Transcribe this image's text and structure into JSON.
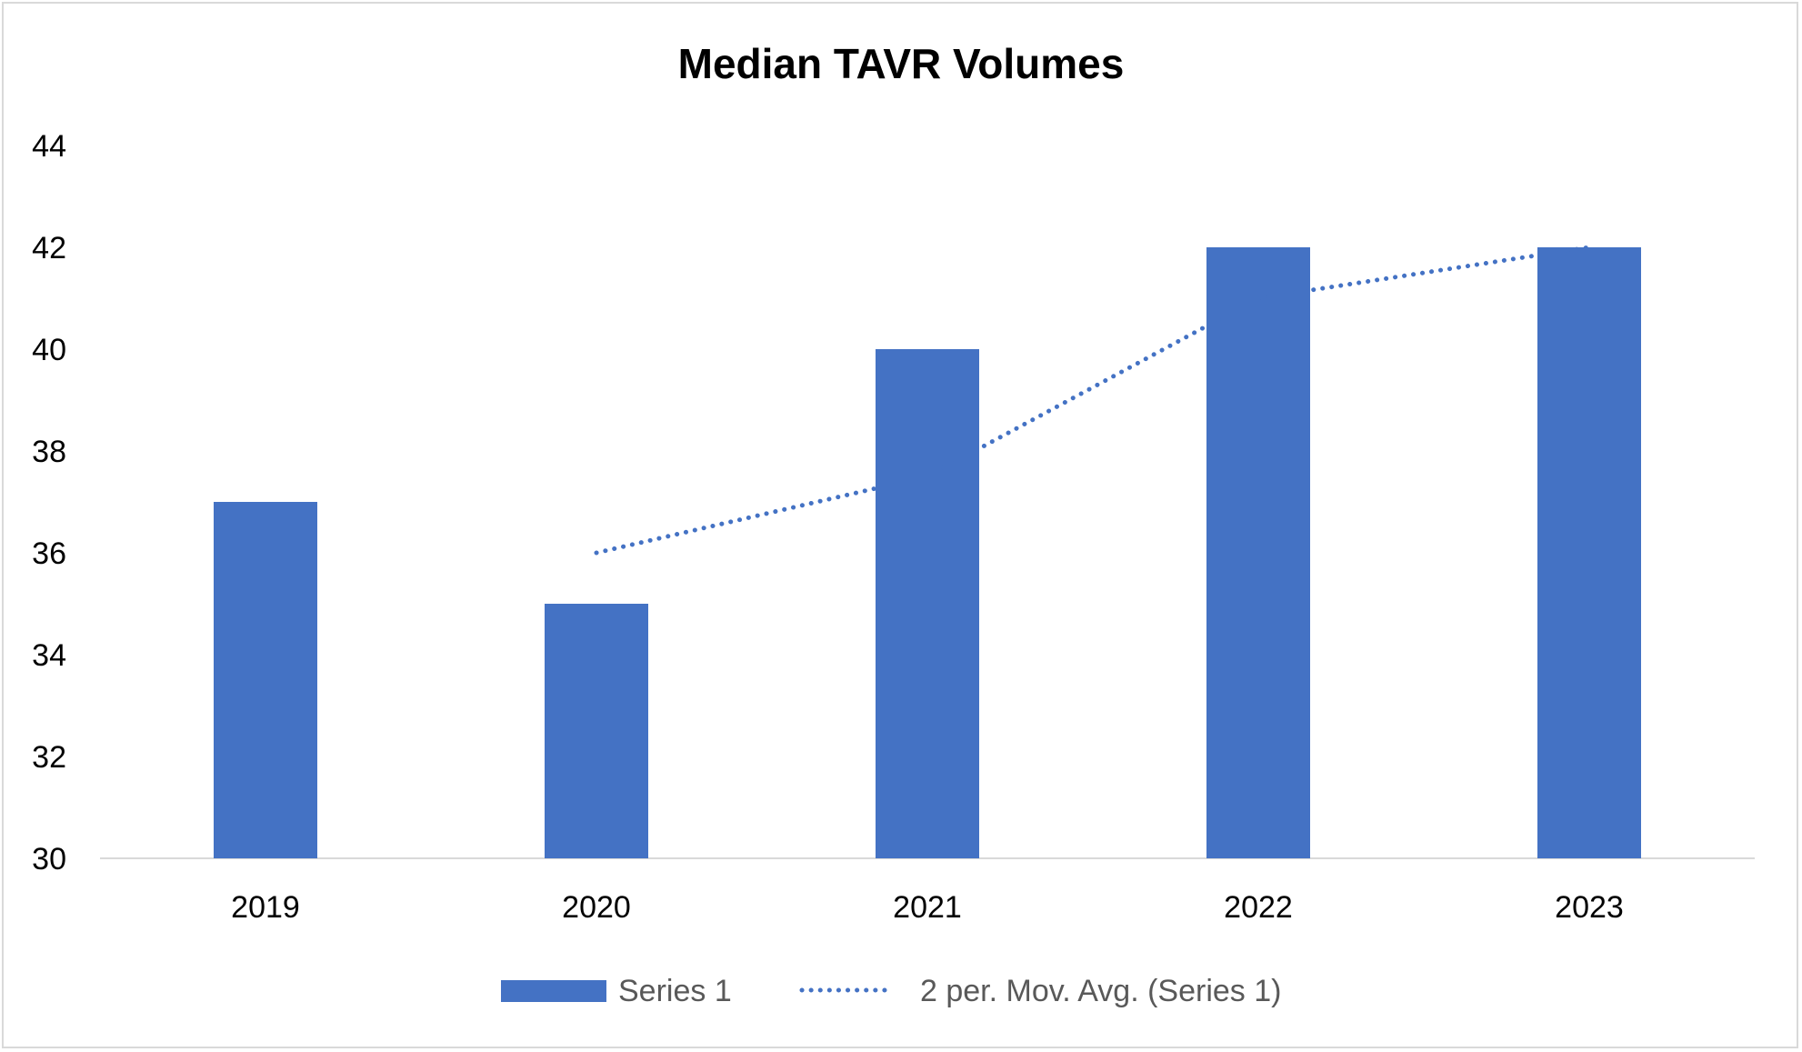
{
  "chart_data": {
    "type": "bar",
    "title": "Median TAVR Volumes",
    "xlabel": "",
    "ylabel": "",
    "categories": [
      "2019",
      "2020",
      "2021",
      "2022",
      "2023"
    ],
    "series": [
      {
        "name": "Series 1",
        "type": "bar",
        "values": [
          37,
          35,
          40,
          42,
          42
        ],
        "color": "#4472C4"
      }
    ],
    "trendline": {
      "name": "2 per. Mov. Avg. (Series 1)",
      "type": "moving-average",
      "period": 2,
      "values": [
        null,
        36,
        37.5,
        41,
        42
      ],
      "color": "#4472C4",
      "style": "dotted"
    },
    "ylim": [
      30,
      44
    ],
    "yticks": [
      "30",
      "32",
      "34",
      "36",
      "38",
      "40",
      "42",
      "44"
    ],
    "grid": false,
    "legend_position": "bottom"
  }
}
